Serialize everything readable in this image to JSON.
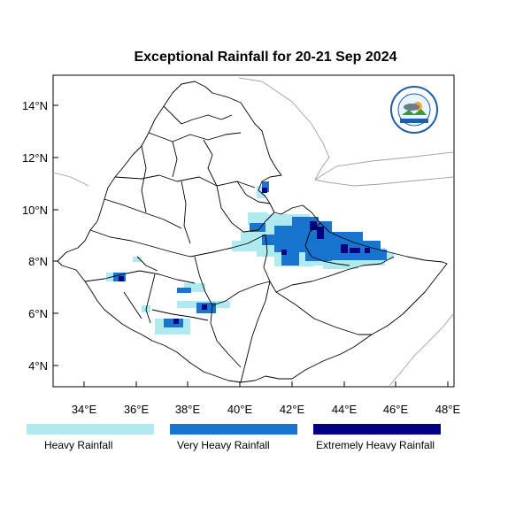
{
  "title": "Exceptional Rainfall for 20-21 Sep 2024",
  "map": {
    "lon_range": [
      32.8,
      48.3
    ],
    "lat_range": [
      3.2,
      15.0
    ],
    "x_ticks": [
      "34°E",
      "36°E",
      "38°E",
      "40°E",
      "42°E",
      "44°E",
      "46°E",
      "48°E"
    ],
    "y_ticks": [
      "4°N",
      "6°N",
      "8°N",
      "10°N",
      "12°N",
      "14°N"
    ]
  },
  "legend": [
    {
      "label": "Heavy Rainfall",
      "color": "#aeeaf0"
    },
    {
      "label": "Very Heavy Rainfall",
      "color": "#1874cd"
    },
    {
      "label": "Extremely Heavy Rainfall",
      "color": "#000080"
    }
  ],
  "colors": {
    "heavy": "#aeeaf0",
    "very_heavy": "#1874cd",
    "extreme": "#000080",
    "border": "#000000",
    "neighbor_border": "#a0a0a0"
  },
  "logo": {
    "text_top": "Ethiopian Meteorology Institute",
    "text_bottom": "EMI"
  }
}
